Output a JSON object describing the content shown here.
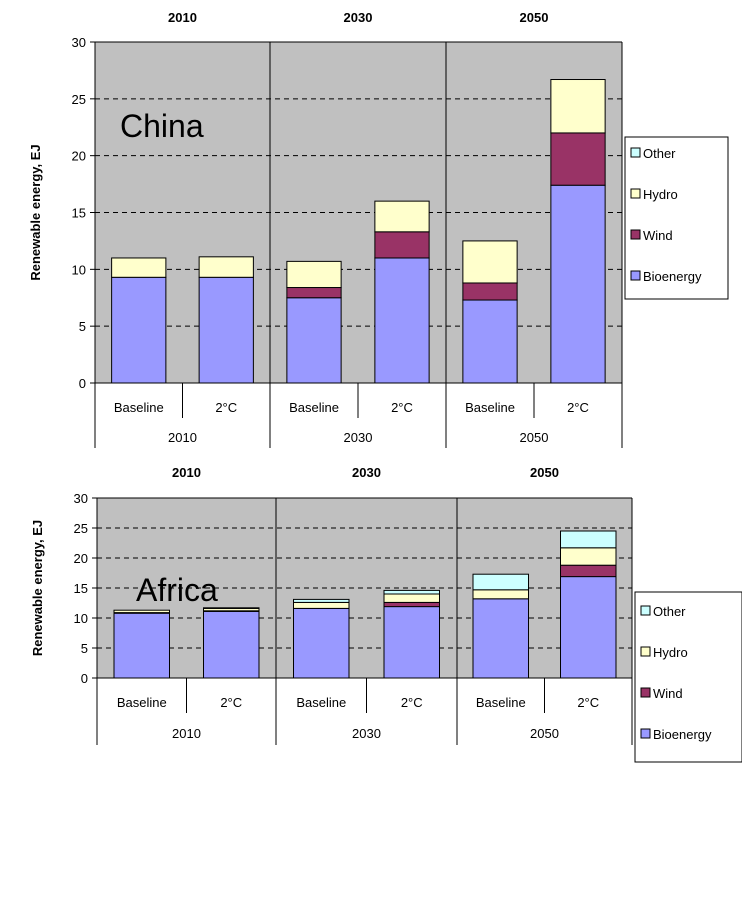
{
  "colors": {
    "plot_bg": "#c0c0c0",
    "Bioenergy": "#9999ff",
    "Wind": "#993366",
    "Hydro": "#ffffcc",
    "Other": "#ccffff"
  },
  "chart_data": [
    {
      "type": "bar",
      "stacked": true,
      "annotation": "China",
      "ylabel": "Renewable energy, EJ",
      "ylim": [
        0,
        30
      ],
      "yticks": [
        "0",
        "5",
        "10",
        "15",
        "20",
        "25",
        "30"
      ],
      "grid": "horizontal dashed",
      "legend_position": "right",
      "decades": [
        "2010",
        "2030",
        "2050"
      ],
      "categories": [
        "Baseline",
        "2°C",
        "Baseline",
        "2°C",
        "Baseline",
        "2°C"
      ],
      "series": [
        {
          "name": "Bioenergy",
          "values": [
            9.3,
            9.3,
            7.5,
            11.0,
            7.3,
            17.4
          ]
        },
        {
          "name": "Wind",
          "values": [
            0.0,
            0.0,
            0.9,
            2.3,
            1.5,
            4.6
          ]
        },
        {
          "name": "Hydro",
          "values": [
            1.7,
            1.8,
            2.3,
            2.7,
            3.7,
            4.7
          ]
        },
        {
          "name": "Other",
          "values": [
            0.0,
            0.0,
            0.0,
            0.0,
            0.0,
            0.0
          ]
        }
      ]
    },
    {
      "type": "bar",
      "stacked": true,
      "annotation": "Africa",
      "ylabel": "Renewable energy, EJ",
      "ylim": [
        0,
        30
      ],
      "yticks": [
        "0",
        "5",
        "10",
        "15",
        "20",
        "25",
        "30"
      ],
      "grid": "horizontal dashed",
      "legend_position": "right",
      "decades": [
        "2010",
        "2030",
        "2050"
      ],
      "categories": [
        "Baseline",
        "2°C",
        "Baseline",
        "2°C",
        "Baseline",
        "2°C"
      ],
      "series": [
        {
          "name": "Bioenergy",
          "values": [
            10.8,
            11.1,
            11.6,
            11.9,
            13.2,
            16.9
          ]
        },
        {
          "name": "Wind",
          "values": [
            0.1,
            0.1,
            0.0,
            0.7,
            0.0,
            1.9
          ]
        },
        {
          "name": "Hydro",
          "values": [
            0.4,
            0.4,
            1.0,
            1.4,
            1.5,
            2.9
          ]
        },
        {
          "name": "Other",
          "values": [
            0.0,
            0.1,
            0.5,
            0.6,
            2.6,
            2.8
          ]
        }
      ]
    }
  ]
}
